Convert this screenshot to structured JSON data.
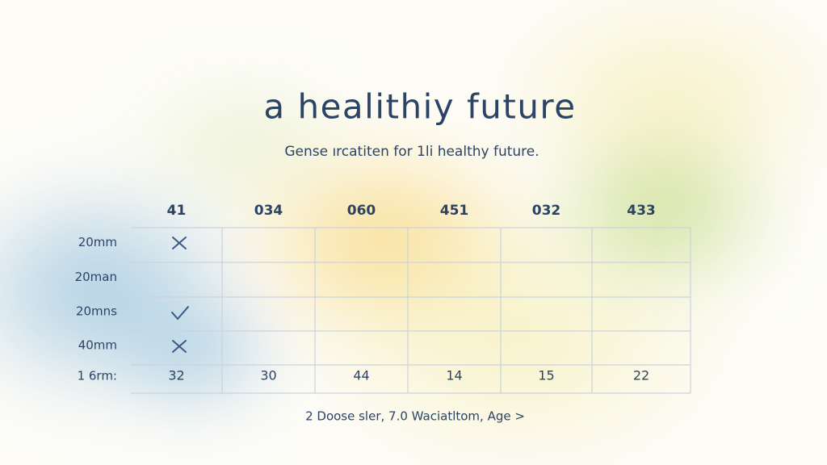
{
  "header": {
    "title": "a healithiy future",
    "subtitle": "Gense ırcatiten for 1li healthy future."
  },
  "table": {
    "columns": [
      "41",
      "034",
      "060",
      "451",
      "032",
      "433"
    ],
    "row_labels": [
      "20mm",
      "20man",
      "20mns",
      "40mm",
      "1 6rm:"
    ],
    "totals": [
      32,
      30,
      44,
      14,
      15,
      22
    ]
  },
  "footer": "2 Doose sler, 7.0 Waciatltom, Age >"
}
